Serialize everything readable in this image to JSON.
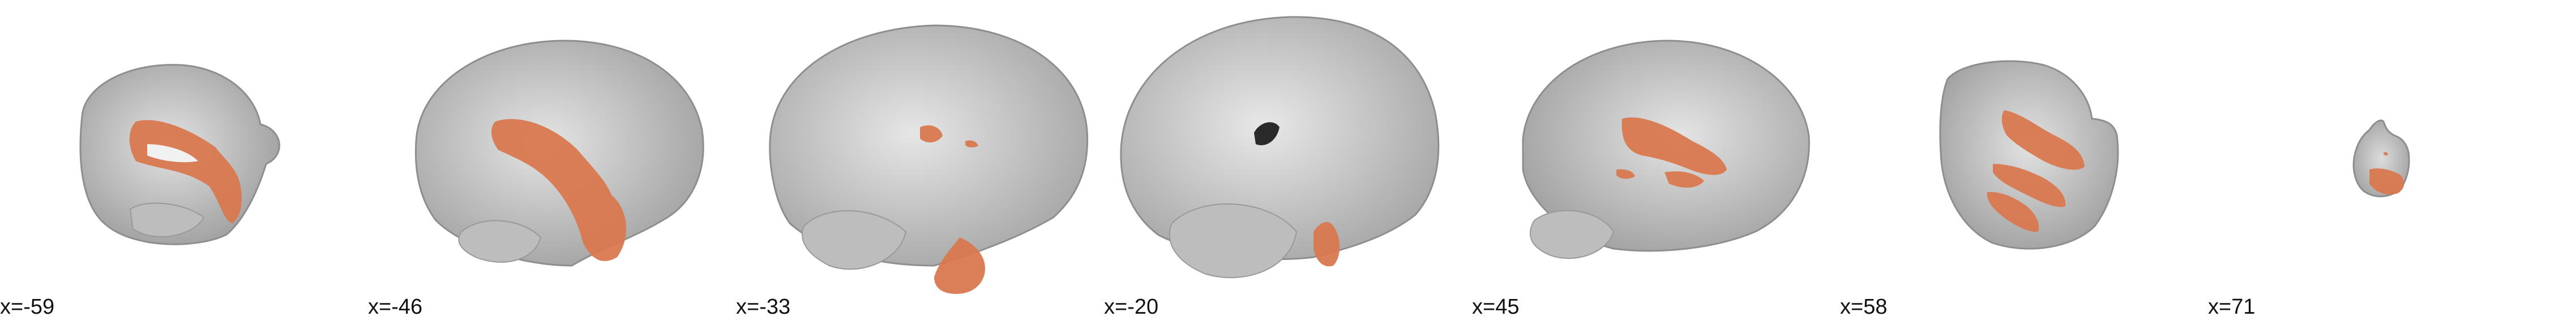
{
  "figure": {
    "view": "sagittal",
    "overlay_color": "#d9784f",
    "brain_color": "#c9c9c9",
    "slices": [
      {
        "label": "x=-59"
      },
      {
        "label": "x=-46"
      },
      {
        "label": "x=-33"
      },
      {
        "label": "x=-20"
      },
      {
        "label": "x=45"
      },
      {
        "label": "x=58"
      },
      {
        "label": "x=71"
      }
    ]
  }
}
